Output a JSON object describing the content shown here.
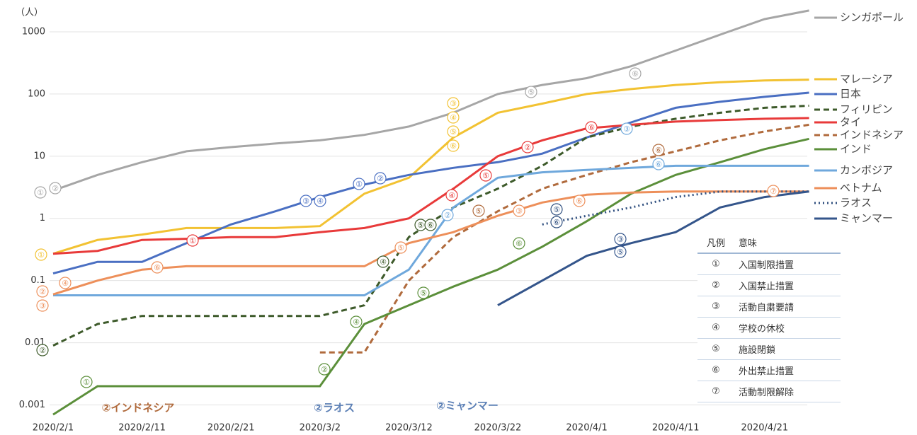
{
  "chart_data": {
    "type": "line",
    "unit_label": "（人）",
    "log_scale": true,
    "grid": true,
    "ylim": [
      0.0006,
      2500
    ],
    "yticks": [
      1000,
      100,
      10,
      1,
      0.1,
      0.01,
      0.001
    ],
    "x": [
      "2020/2/1",
      "2020/2/6",
      "2020/2/11",
      "2020/2/16",
      "2020/2/21",
      "2020/2/26",
      "2020/3/2",
      "2020/3/7",
      "2020/3/12",
      "2020/3/17",
      "2020/3/22",
      "2020/3/27",
      "2020/4/1",
      "2020/4/6",
      "2020/4/11",
      "2020/4/16",
      "2020/4/21",
      "2020/4/26"
    ],
    "xticks": [
      "2020/2/1",
      "2020/2/11",
      "2020/2/21",
      "2020/3/2",
      "2020/3/12",
      "2020/3/22",
      "2020/4/1",
      "2020/4/11",
      "2020/4/21"
    ],
    "series": [
      {
        "name": "シンガポール",
        "color": "#a6a6a6",
        "dash": "solid",
        "values": [
          2.8,
          5,
          8,
          12,
          14,
          16,
          18,
          22,
          30,
          50,
          100,
          140,
          180,
          280,
          500,
          900,
          1600,
          2200
        ]
      },
      {
        "name": "マレーシア",
        "color": "#f2c232",
        "dash": "solid",
        "values": [
          0.27,
          0.45,
          0.55,
          0.7,
          0.7,
          0.7,
          0.75,
          2.5,
          4.5,
          20,
          50,
          70,
          100,
          120,
          140,
          155,
          165,
          170
        ]
      },
      {
        "name": "日本",
        "color": "#4a6fc2",
        "dash": "solid",
        "values": [
          0.13,
          0.2,
          0.2,
          0.4,
          0.8,
          1.3,
          2.2,
          3.5,
          5,
          6.5,
          8,
          11,
          20,
          35,
          60,
          75,
          90,
          105
        ]
      },
      {
        "name": "フィリピン",
        "color": "#3d5a2a",
        "dash": "dash",
        "values": [
          0.009,
          0.02,
          0.027,
          0.027,
          0.027,
          0.027,
          0.027,
          0.04,
          0.5,
          1.5,
          3,
          7,
          20,
          30,
          40,
          50,
          60,
          65
        ]
      },
      {
        "name": "タイ",
        "color": "#e83a3a",
        "dash": "solid",
        "values": [
          0.27,
          0.3,
          0.45,
          0.47,
          0.5,
          0.5,
          0.6,
          0.7,
          1,
          3,
          10,
          18,
          28,
          32,
          36,
          38,
          40,
          41
        ]
      },
      {
        "name": "インドネシア",
        "color": "#b06a3c",
        "dash": "dash",
        "values": [
          null,
          null,
          null,
          null,
          null,
          null,
          0.007,
          0.007,
          0.1,
          0.5,
          1.3,
          3,
          5,
          8,
          12,
          18,
          25,
          32
        ]
      },
      {
        "name": "インド",
        "color": "#5b8f3a",
        "dash": "solid",
        "values": [
          0.0007,
          0.002,
          0.002,
          0.002,
          0.002,
          0.002,
          0.002,
          0.02,
          0.04,
          0.08,
          0.15,
          0.35,
          0.9,
          2.5,
          5,
          8,
          13,
          19
        ]
      },
      {
        "name": "カンボジア",
        "color": "#6fa8dc",
        "dash": "solid",
        "values": [
          0.058,
          0.058,
          0.058,
          0.058,
          0.058,
          0.058,
          0.058,
          0.058,
          0.15,
          1.5,
          4.5,
          5.5,
          6,
          6.5,
          7,
          7,
          7,
          7
        ]
      },
      {
        "name": "ベトナム",
        "color": "#ed8f5a",
        "dash": "solid",
        "values": [
          0.06,
          0.1,
          0.15,
          0.17,
          0.17,
          0.17,
          0.17,
          0.17,
          0.4,
          0.6,
          1.1,
          1.8,
          2.4,
          2.6,
          2.7,
          2.7,
          2.7,
          2.7
        ]
      },
      {
        "name": "ラオス",
        "color": "#2f4f7f",
        "dash": "dot",
        "values": [
          null,
          null,
          null,
          null,
          null,
          null,
          null,
          null,
          null,
          null,
          null,
          0.8,
          1.1,
          1.5,
          2.2,
          2.7,
          2.7,
          2.7
        ]
      },
      {
        "name": "ミャンマー",
        "color": "#34558b",
        "dash": "solid",
        "values": [
          null,
          null,
          null,
          null,
          null,
          null,
          null,
          null,
          null,
          null,
          0.04,
          0.1,
          0.25,
          0.4,
          0.6,
          1.5,
          2.2,
          2.7
        ]
      }
    ],
    "annotations": [
      {
        "text": "①",
        "color": "#a6a6a6"
      },
      {
        "text": "②",
        "color": "#a6a6a6"
      },
      {
        "text": "①",
        "color": "#f2c232"
      },
      {
        "text": "②",
        "color": "#ed8f5a"
      },
      {
        "text": "③",
        "color": "#ed8f5a"
      },
      {
        "text": "④",
        "color": "#ed8f5a"
      },
      {
        "text": "②",
        "color": "#3d5a2a"
      },
      {
        "text": "①",
        "color": "#5b8f3a"
      },
      {
        "text": "⑥",
        "color": "#ed8f5a"
      },
      {
        "text": "①",
        "color": "#e83a3a"
      },
      {
        "text": "③",
        "color": "#4a6fc2"
      },
      {
        "text": "④",
        "color": "#4a6fc2"
      },
      {
        "text": "①",
        "color": "#4a6fc2"
      },
      {
        "text": "②",
        "color": "#4a6fc2"
      },
      {
        "text": "⑤",
        "color": "#a6a6a6"
      },
      {
        "text": "⑥",
        "color": "#a6a6a6"
      },
      {
        "text": "③",
        "color": "#f2c232"
      },
      {
        "text": "④",
        "color": "#f2c232"
      },
      {
        "text": "⑤",
        "color": "#f2c232"
      },
      {
        "text": "⑥",
        "color": "#f2c232"
      },
      {
        "text": "④",
        "color": "#e83a3a"
      },
      {
        "text": "⑤",
        "color": "#e83a3a"
      },
      {
        "text": "②",
        "color": "#e83a3a"
      },
      {
        "text": "⑥",
        "color": "#e83a3a"
      },
      {
        "text": "③",
        "color": "#6fa8dc"
      },
      {
        "text": "②",
        "color": "#6fa8dc"
      },
      {
        "text": "⑥",
        "color": "#6fa8dc"
      },
      {
        "text": "⑤",
        "color": "#3d5a2a"
      },
      {
        "text": "⑥",
        "color": "#3d5a2a"
      },
      {
        "text": "④",
        "color": "#3d5a2a"
      },
      {
        "text": "⑤",
        "color": "#b06a3c"
      },
      {
        "text": "⑥",
        "color": "#b06a3c"
      },
      {
        "text": "④",
        "color": "#5b8f3a"
      },
      {
        "text": "②",
        "color": "#5b8f3a"
      },
      {
        "text": "⑤",
        "color": "#5b8f3a"
      },
      {
        "text": "⑥",
        "color": "#5b8f3a"
      },
      {
        "text": "⑤",
        "color": "#ed8f5a"
      },
      {
        "text": "③",
        "color": "#ed8f5a"
      },
      {
        "text": "⑥",
        "color": "#ed8f5a"
      },
      {
        "text": "⑦",
        "color": "#ed8f5a"
      },
      {
        "text": "⑤",
        "color": "#2f4f7f"
      },
      {
        "text": "⑥",
        "color": "#2f4f7f"
      },
      {
        "text": "③",
        "color": "#34558b"
      },
      {
        "text": "⑤",
        "color": "#34558b"
      }
    ],
    "notes": [
      {
        "text": "②インドネシア",
        "color": "#b06a3c"
      },
      {
        "text": "②ラオス",
        "color": "#5b7fb5"
      },
      {
        "text": "②ミャンマー",
        "color": "#5b7fb5"
      }
    ]
  },
  "table": {
    "header": [
      "凡例",
      "意味"
    ],
    "rows": [
      [
        "①",
        "入国制限措置"
      ],
      [
        "②",
        "入国禁止措置"
      ],
      [
        "③",
        "活動自粛要請"
      ],
      [
        "④",
        "学校の休校"
      ],
      [
        "⑤",
        "施設閉鎖"
      ],
      [
        "⑥",
        "外出禁止措置"
      ],
      [
        "⑦",
        "活動制限解除"
      ]
    ]
  }
}
